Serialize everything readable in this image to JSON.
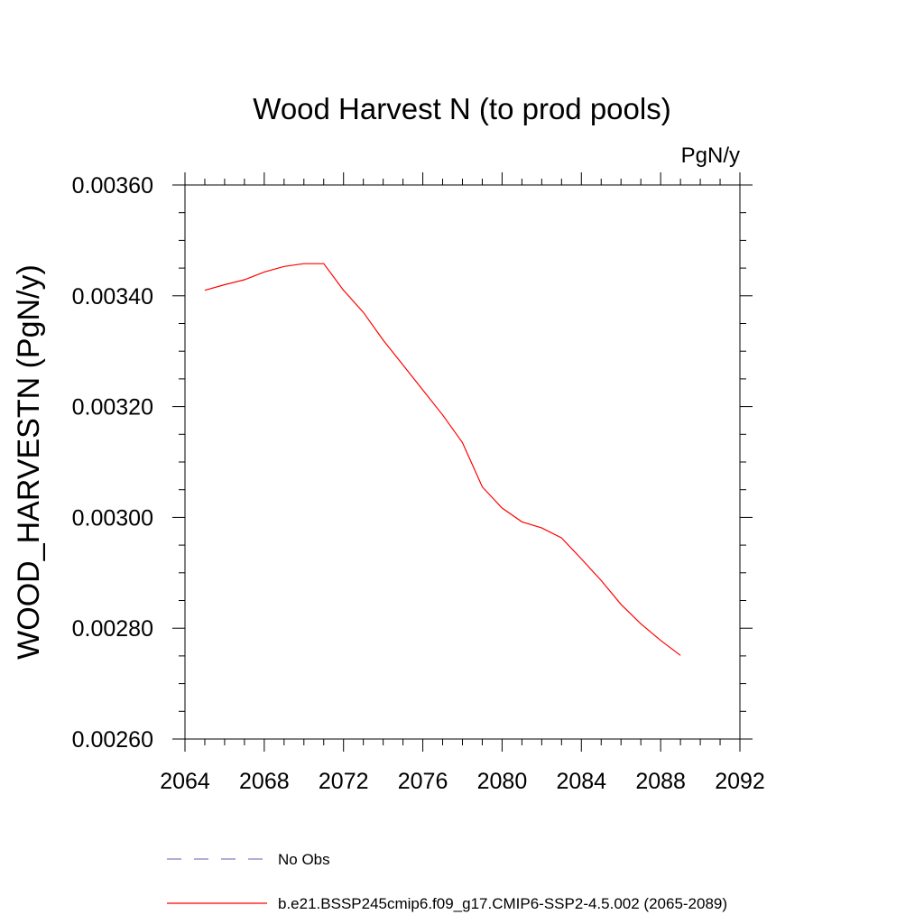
{
  "chart_data": {
    "type": "line",
    "title": "Wood Harvest N (to prod pools)",
    "units_label": "PgN/y",
    "ylabel": "WOOD_HARVESTN  (PgN/y)",
    "xlabel": "",
    "xlim": [
      2064,
      2092
    ],
    "ylim": [
      0.0026,
      0.0036
    ],
    "x_ticks": [
      "2064",
      "2068",
      "2072",
      "2076",
      "2080",
      "2084",
      "2088",
      "2092"
    ],
    "y_ticks": [
      "0.00260",
      "0.00280",
      "0.00300",
      "0.00320",
      "0.00340",
      "0.00360"
    ],
    "grid": false,
    "legend_position": "bottom",
    "series": [
      {
        "name": "No Obs",
        "color": "#7f7fbf",
        "dash": "dashed",
        "x": [],
        "y": []
      },
      {
        "name": "b.e21.BSSP245cmip6.f09_g17.CMIP6-SSP2-4.5.002 (2065-2089)",
        "color": "#ff0000",
        "dash": "solid",
        "x": [
          2065,
          2066,
          2067,
          2068,
          2069,
          2070,
          2071,
          2072,
          2073,
          2074,
          2075,
          2076,
          2077,
          2078,
          2079,
          2080,
          2081,
          2082,
          2083,
          2084,
          2085,
          2086,
          2087,
          2088,
          2089
        ],
        "y": [
          0.00341,
          0.00342,
          0.003429,
          0.003443,
          0.003453,
          0.003458,
          0.003458,
          0.00341,
          0.00337,
          0.00332,
          0.003275,
          0.00323,
          0.003185,
          0.003135,
          0.003055,
          0.003017,
          0.002992,
          0.002981,
          0.002963,
          0.002925,
          0.002886,
          0.002843,
          0.002808,
          0.002778,
          0.002751
        ]
      }
    ]
  }
}
